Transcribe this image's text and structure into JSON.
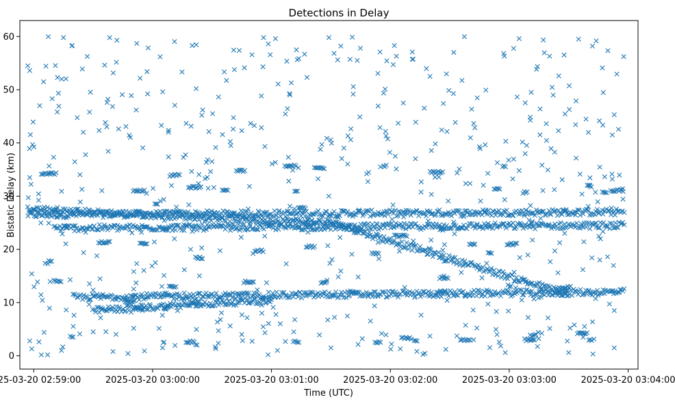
{
  "chart_data": {
    "type": "scatter",
    "title": "Detections in Delay",
    "xlabel": "Time (UTC)",
    "ylabel": "Bistatic Delay (km)",
    "x_ticks": [
      "2025-03-20 02:59:00",
      "2025-03-20 03:00:00",
      "2025-03-20 03:01:00",
      "2025-03-20 03:02:00",
      "2025-03-20 03:03:00",
      "2025-03-20 03:04:00"
    ],
    "y_ticks": [
      "0",
      "10",
      "20",
      "30",
      "40",
      "50",
      "60"
    ],
    "xlim": [
      "2025-03-20 02:58:53",
      "2025-03-20 03:04:05"
    ],
    "ylim": [
      -2.5,
      63
    ],
    "grid": false,
    "marker": "x",
    "color": "#1f77b4",
    "x_range_data": [
      "2025-03-20 02:58:57",
      "2025-03-20 03:03:58"
    ],
    "series": [
      {
        "values_description_tracks": [
          {
            "x_start": "2025-03-20 02:58:57",
            "x_end": "2025-03-20 03:03:58",
            "y_start": 26.5,
            "y_end": 27.0
          },
          {
            "x_start": "2025-03-20 02:58:57",
            "x_end": "2025-03-20 03:01:30",
            "y_start": 27.5,
            "y_end": 25.0
          },
          {
            "x_start": "2025-03-20 03:01:30",
            "x_end": "2025-03-20 03:03:30",
            "y_start": 25.0,
            "y_end": 11.5
          },
          {
            "x_start": "2025-03-20 02:59:10",
            "x_end": "2025-03-20 03:03:58",
            "y_start": 24.0,
            "y_end": 24.5
          },
          {
            "x_start": "2025-03-20 02:59:20",
            "x_end": "2025-03-20 03:03:58",
            "y_start": 11.0,
            "y_end": 12.0
          },
          {
            "x_start": "2025-03-20 02:59:30",
            "x_end": "2025-03-20 03:01:00",
            "y_start": 8.5,
            "y_end": 10.5
          }
        ]
      }
    ],
    "points": [
      {
        "x": "2025-03-20 02:58:57",
        "y": 54.5
      },
      {
        "x": "2025-03-20 02:58:58",
        "y": 53.6
      },
      {
        "x": "2025-03-20 02:59:05",
        "y": 51.5
      },
      {
        "x": "2025-03-20 02:59:12",
        "y": 52.3
      },
      {
        "x": "2025-03-20 02:59:15",
        "y": 59.8
      },
      {
        "x": "2025-03-20 02:59:42",
        "y": 59.3
      },
      {
        "x": "2025-03-20 02:59:52",
        "y": 58.7
      },
      {
        "x": "2025-03-20 03:00:20",
        "y": 58.3
      },
      {
        "x": "2025-03-20 03:00:56",
        "y": 59.8
      },
      {
        "x": "2025-03-20 03:01:02",
        "y": 59.6
      },
      {
        "x": "2025-03-20 03:01:35",
        "y": 58.2
      },
      {
        "x": "2025-03-20 03:02:02",
        "y": 58.3
      },
      {
        "x": "2025-03-20 03:02:32",
        "y": 57.0
      },
      {
        "x": "2025-03-20 03:03:05",
        "y": 59.6
      },
      {
        "x": "2025-03-20 03:03:35",
        "y": 59.5
      },
      {
        "x": "2025-03-20 03:03:42",
        "y": 58.2
      },
      {
        "x": "2025-03-20 02:59:03",
        "y": 47.0
      },
      {
        "x": "2025-03-20 02:59:37",
        "y": 47.6
      },
      {
        "x": "2025-03-20 03:00:22",
        "y": 50.2
      },
      {
        "x": "2025-03-20 03:01:10",
        "y": 51.3
      },
      {
        "x": "2025-03-20 03:02:20",
        "y": 52.5
      },
      {
        "x": "2025-03-20 03:03:25",
        "y": 52.6
      },
      {
        "x": "2025-03-20 03:03:53",
        "y": 45.3
      },
      {
        "x": "2025-03-20 02:59:25",
        "y": 42.0
      },
      {
        "x": "2025-03-20 03:00:45",
        "y": 42.3
      },
      {
        "x": "2025-03-20 03:01:40",
        "y": 40.6
      },
      {
        "x": "2025-03-20 03:02:45",
        "y": 39.3
      },
      {
        "x": "2025-03-20 03:03:52",
        "y": 41.5
      },
      {
        "x": "2025-03-20 02:59:10",
        "y": 37.3
      },
      {
        "x": "2025-03-20 03:00:30",
        "y": 36.5
      },
      {
        "x": "2025-03-20 03:01:55",
        "y": 35.5
      },
      {
        "x": "2025-03-20 03:03:05",
        "y": 34.8
      },
      {
        "x": "2025-03-20 02:58:58",
        "y": 33.5
      },
      {
        "x": "2025-03-20 03:03:52",
        "y": 33.2
      },
      {
        "x": "2025-03-20 02:58:58",
        "y": 2.8
      },
      {
        "x": "2025-03-20 02:58:59",
        "y": 1.3
      },
      {
        "x": "2025-03-20 02:59:14",
        "y": 1.0
      },
      {
        "x": "2025-03-20 02:59:40",
        "y": 0.8
      },
      {
        "x": "2025-03-20 03:00:05",
        "y": 1.5
      },
      {
        "x": "2025-03-20 03:01:03",
        "y": 1.0
      },
      {
        "x": "2025-03-20 03:01:30",
        "y": 1.5
      },
      {
        "x": "2025-03-20 03:02:05",
        "y": 1.3
      },
      {
        "x": "2025-03-20 03:02:28",
        "y": 1.2
      },
      {
        "x": "2025-03-20 03:02:58",
        "y": 0.6
      },
      {
        "x": "2025-03-20 03:03:30",
        "y": 0.6
      },
      {
        "x": "2025-03-20 03:03:53",
        "y": 1.5
      },
      {
        "x": "2025-03-20 02:59:30",
        "y": 4.5
      },
      {
        "x": "2025-03-20 03:00:45",
        "y": 4.0
      },
      {
        "x": "2025-03-20 03:02:20",
        "y": 3.7
      },
      {
        "x": "2025-03-20 03:02:42",
        "y": 3.0
      },
      {
        "x": "2025-03-20 03:03:38",
        "y": 5.5
      },
      {
        "x": "2025-03-20 03:03:53",
        "y": 8.5
      }
    ]
  }
}
